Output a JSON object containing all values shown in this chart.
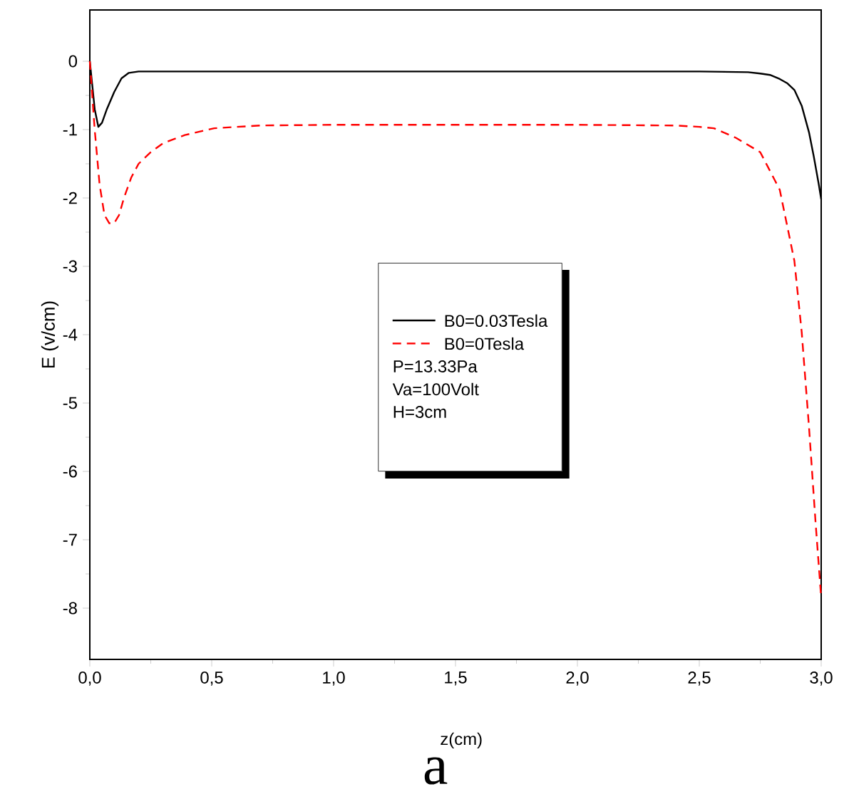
{
  "chart_data": {
    "type": "line",
    "xlabel": "z(cm)",
    "ylabel": "E (v/cm)",
    "annotations": [
      "P=13.33Pa",
      "Va=100Volt",
      "H=3cm",
      "a"
    ],
    "xlim": [
      0,
      3.0
    ],
    "ylim": [
      -8.75,
      0.75
    ],
    "xticks": [
      {
        "value": 0,
        "label": "0,0"
      },
      {
        "value": 0.5,
        "label": "0,5"
      },
      {
        "value": 1.0,
        "label": "1,0"
      },
      {
        "value": 1.5,
        "label": "1,5"
      },
      {
        "value": 2.0,
        "label": "2,0"
      },
      {
        "value": 2.5,
        "label": "2,5"
      },
      {
        "value": 3.0,
        "label": "3,0"
      }
    ],
    "yticks": [
      -8,
      -7,
      -6,
      -5,
      -4,
      -3,
      -2,
      -1,
      0
    ],
    "legend": "center",
    "grid": false,
    "series": [
      {
        "name": "B0=0.03Tesla",
        "color": "#000000",
        "line_style": "solid",
        "x": [
          0,
          0.01,
          0.02,
          0.035,
          0.05,
          0.07,
          0.1,
          0.13,
          0.16,
          0.2,
          0.3,
          0.5,
          1.0,
          1.5,
          2.0,
          2.5,
          2.7,
          2.75,
          2.79,
          2.83,
          2.86,
          2.89,
          2.92,
          2.95,
          2.97,
          2.99,
          3.0
        ],
        "values": [
          0,
          -0.35,
          -0.7,
          -0.96,
          -0.9,
          -0.7,
          -0.45,
          -0.25,
          -0.17,
          -0.15,
          -0.15,
          -0.15,
          -0.15,
          -0.15,
          -0.15,
          -0.15,
          -0.16,
          -0.18,
          -0.2,
          -0.26,
          -0.32,
          -0.42,
          -0.65,
          -1.04,
          -1.4,
          -1.8,
          -2.02
        ]
      },
      {
        "name": "B0=0Tesla",
        "color": "#ff0000",
        "line_style": "dashed",
        "x": [
          0,
          0.01,
          0.02,
          0.04,
          0.06,
          0.08,
          0.1,
          0.12,
          0.14,
          0.17,
          0.2,
          0.25,
          0.3,
          0.39,
          0.51,
          0.7,
          1.0,
          1.5,
          2.0,
          2.4,
          2.5,
          2.56,
          2.65,
          2.75,
          2.83,
          2.89,
          2.92,
          2.95,
          2.977,
          3.0
        ],
        "values": [
          0,
          -0.5,
          -1.0,
          -1.8,
          -2.25,
          -2.37,
          -2.37,
          -2.25,
          -2.0,
          -1.7,
          -1.5,
          -1.33,
          -1.2,
          -1.08,
          -0.98,
          -0.94,
          -0.93,
          -0.93,
          -0.93,
          -0.94,
          -0.96,
          -0.98,
          -1.12,
          -1.33,
          -1.88,
          -2.92,
          -3.96,
          -5.35,
          -6.75,
          -7.85
        ]
      }
    ]
  }
}
